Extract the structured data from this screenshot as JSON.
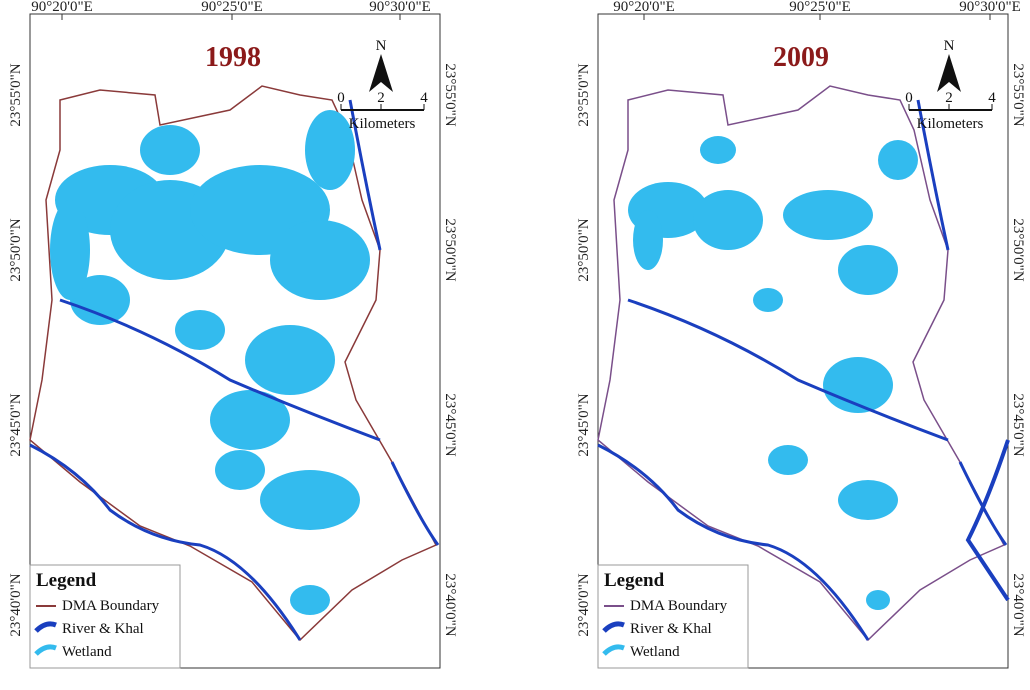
{
  "maps": [
    {
      "title": "1998",
      "top_labels": [
        "90°20'0\"E",
        "90°25'0\"E",
        "90°30'0\"E"
      ],
      "left_labels": [
        "23°55'0\"N",
        "23°50'0\"N",
        "23°45'0\"N",
        "23°40'0\"N"
      ],
      "right_labels": [
        "23°55'0\"N",
        "23°50'0\"N",
        "23°45'0\"N",
        "23°40'0\"N"
      ],
      "north": "N",
      "scale": {
        "ticks": [
          0,
          2,
          4
        ],
        "unit": "Kilometers"
      },
      "legend": {
        "title": "Legend",
        "items": [
          "DMA Boundary",
          "River & Khal",
          "Wetland"
        ]
      }
    },
    {
      "title": "2009",
      "top_labels": [
        "90°20'0\"E",
        "90°25'0\"E",
        "90°30'0\"E"
      ],
      "left_labels": [
        "23°55'0\"N",
        "23°50'0\"N",
        "23°45'0\"N",
        "23°40'0\"N"
      ],
      "right_labels": [
        "23°55'0\"N",
        "23°50'0\"N",
        "23°45'0\"N",
        "23°40'0\"N"
      ],
      "north": "N",
      "scale": {
        "ticks": [
          0,
          2,
          4
        ],
        "unit": "Kilometers"
      },
      "legend": {
        "title": "Legend",
        "items": [
          "DMA Boundary",
          "River & Khal",
          "Wetland"
        ]
      }
    }
  ]
}
